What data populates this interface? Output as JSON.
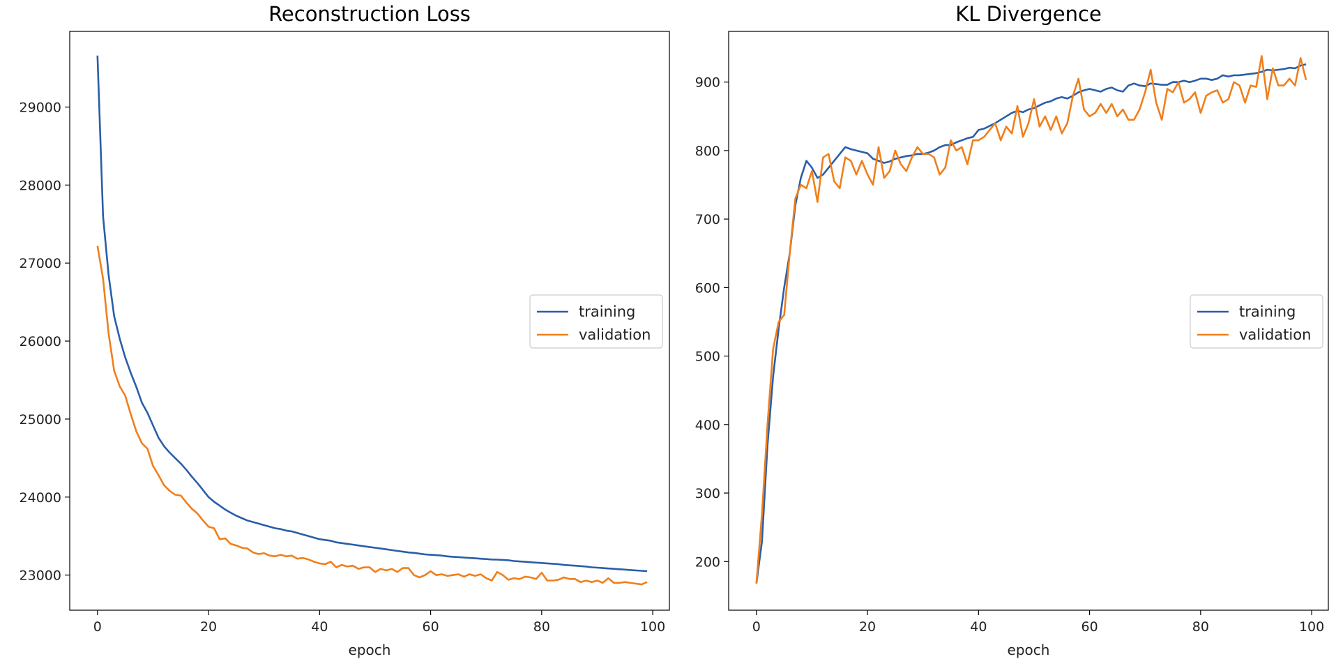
{
  "chart_data": [
    {
      "type": "line",
      "title": "Reconstruction Loss",
      "xlabel": "epoch",
      "ylabel": "",
      "xlim": [
        -5,
        103
      ],
      "ylim": [
        22550,
        29970
      ],
      "xticks": [
        0,
        20,
        40,
        60,
        80,
        100
      ],
      "yticks": [
        23000,
        24000,
        25000,
        26000,
        27000,
        28000,
        29000
      ],
      "grid": false,
      "legend": "center-right",
      "x": [
        0,
        1,
        2,
        3,
        4,
        5,
        6,
        7,
        8,
        9,
        10,
        11,
        12,
        13,
        14,
        15,
        16,
        17,
        18,
        19,
        20,
        21,
        22,
        23,
        24,
        25,
        26,
        27,
        28,
        29,
        30,
        31,
        32,
        33,
        34,
        35,
        36,
        37,
        38,
        39,
        40,
        41,
        42,
        43,
        44,
        45,
        46,
        47,
        48,
        49,
        50,
        51,
        52,
        53,
        54,
        55,
        56,
        57,
        58,
        59,
        60,
        61,
        62,
        63,
        64,
        65,
        66,
        67,
        68,
        69,
        70,
        71,
        72,
        73,
        74,
        75,
        76,
        77,
        78,
        79,
        80,
        81,
        82,
        83,
        84,
        85,
        86,
        87,
        88,
        89,
        90,
        91,
        92,
        93,
        94,
        95,
        96,
        97,
        98,
        99
      ],
      "series": [
        {
          "name": "training",
          "color": "#2a5ea8",
          "values": [
            29660,
            27600,
            26850,
            26320,
            26030,
            25790,
            25590,
            25410,
            25210,
            25080,
            24920,
            24760,
            24650,
            24570,
            24500,
            24430,
            24350,
            24260,
            24180,
            24090,
            24000,
            23940,
            23890,
            23840,
            23800,
            23760,
            23730,
            23700,
            23680,
            23660,
            23640,
            23620,
            23600,
            23590,
            23570,
            23560,
            23540,
            23520,
            23500,
            23480,
            23460,
            23450,
            23440,
            23420,
            23410,
            23400,
            23390,
            23380,
            23370,
            23360,
            23350,
            23340,
            23330,
            23320,
            23310,
            23300,
            23290,
            23285,
            23275,
            23265,
            23260,
            23255,
            23250,
            23240,
            23235,
            23230,
            23225,
            23220,
            23215,
            23210,
            23205,
            23200,
            23198,
            23195,
            23190,
            23180,
            23175,
            23170,
            23165,
            23160,
            23155,
            23150,
            23145,
            23140,
            23130,
            23125,
            23120,
            23115,
            23110,
            23100,
            23095,
            23090,
            23085,
            23080,
            23075,
            23070,
            23065,
            23060,
            23055,
            23050
          ]
        },
        {
          "name": "validation",
          "color": "#f07f1b",
          "values": [
            27220,
            26800,
            26100,
            25620,
            25420,
            25300,
            25060,
            24840,
            24690,
            24620,
            24400,
            24280,
            24150,
            24080,
            24030,
            24020,
            23930,
            23850,
            23790,
            23700,
            23620,
            23600,
            23460,
            23470,
            23400,
            23380,
            23350,
            23340,
            23290,
            23270,
            23280,
            23250,
            23240,
            23260,
            23240,
            23250,
            23210,
            23220,
            23200,
            23170,
            23150,
            23140,
            23170,
            23100,
            23130,
            23110,
            23120,
            23080,
            23100,
            23100,
            23040,
            23080,
            23060,
            23080,
            23040,
            23090,
            23090,
            23000,
            22970,
            23000,
            23050,
            23000,
            23010,
            22990,
            23000,
            23010,
            22980,
            23010,
            22990,
            23010,
            22960,
            22930,
            23040,
            23000,
            22940,
            22960,
            22950,
            22980,
            22970,
            22950,
            23030,
            22930,
            22930,
            22940,
            22970,
            22950,
            22950,
            22910,
            22930,
            22910,
            22930,
            22900,
            22960,
            22900,
            22900,
            22910,
            22900,
            22890,
            22880,
            22910
          ]
        }
      ]
    },
    {
      "type": "line",
      "title": "KL Divergence",
      "xlabel": "epoch",
      "ylabel": "",
      "xlim": [
        -5,
        103
      ],
      "ylim": [
        129,
        974
      ],
      "xticks": [
        0,
        20,
        40,
        60,
        80,
        100
      ],
      "yticks": [
        200,
        300,
        400,
        500,
        600,
        700,
        800,
        900
      ],
      "grid": false,
      "legend": "center-right",
      "x": [
        0,
        1,
        2,
        3,
        4,
        5,
        6,
        7,
        8,
        9,
        10,
        11,
        12,
        13,
        14,
        15,
        16,
        17,
        18,
        19,
        20,
        21,
        22,
        23,
        24,
        25,
        26,
        27,
        28,
        29,
        30,
        31,
        32,
        33,
        34,
        35,
        36,
        37,
        38,
        39,
        40,
        41,
        42,
        43,
        44,
        45,
        46,
        47,
        48,
        49,
        50,
        51,
        52,
        53,
        54,
        55,
        56,
        57,
        58,
        59,
        60,
        61,
        62,
        63,
        64,
        65,
        66,
        67,
        68,
        69,
        70,
        71,
        72,
        73,
        74,
        75,
        76,
        77,
        78,
        79,
        80,
        81,
        82,
        83,
        84,
        85,
        86,
        87,
        88,
        89,
        90,
        91,
        92,
        93,
        94,
        95,
        96,
        97,
        98,
        99
      ],
      "series": [
        {
          "name": "training",
          "color": "#2a5ea8",
          "values": [
            168,
            230,
            370,
            470,
            540,
            600,
            650,
            720,
            760,
            785,
            775,
            760,
            765,
            775,
            785,
            795,
            805,
            802,
            800,
            798,
            796,
            788,
            785,
            782,
            784,
            788,
            790,
            792,
            793,
            795,
            795,
            797,
            800,
            805,
            808,
            808,
            812,
            815,
            818,
            820,
            830,
            832,
            836,
            840,
            845,
            850,
            855,
            858,
            856,
            860,
            862,
            866,
            870,
            872,
            876,
            878,
            876,
            880,
            885,
            888,
            890,
            888,
            886,
            890,
            892,
            888,
            886,
            895,
            898,
            895,
            894,
            898,
            897,
            896,
            896,
            900,
            900,
            902,
            900,
            902,
            905,
            905,
            903,
            905,
            910,
            908,
            910,
            910,
            911,
            912,
            913,
            915,
            918,
            917,
            918,
            919,
            921,
            920,
            924,
            926
          ]
        },
        {
          "name": "validation",
          "color": "#f07f1b",
          "values": [
            168,
            270,
            400,
            510,
            550,
            560,
            650,
            730,
            750,
            745,
            770,
            725,
            790,
            795,
            755,
            745,
            790,
            785,
            765,
            785,
            765,
            750,
            805,
            760,
            770,
            800,
            780,
            770,
            790,
            805,
            795,
            795,
            790,
            765,
            775,
            815,
            800,
            805,
            780,
            815,
            815,
            820,
            830,
            840,
            815,
            835,
            825,
            865,
            820,
            840,
            875,
            835,
            850,
            830,
            850,
            825,
            840,
            880,
            905,
            860,
            850,
            855,
            868,
            855,
            868,
            850,
            860,
            845,
            845,
            860,
            885,
            918,
            870,
            845,
            890,
            885,
            900,
            870,
            875,
            885,
            855,
            880,
            885,
            888,
            870,
            875,
            900,
            895,
            870,
            895,
            893,
            938,
            875,
            920,
            895,
            895,
            905,
            895,
            935,
            903
          ]
        }
      ]
    }
  ]
}
